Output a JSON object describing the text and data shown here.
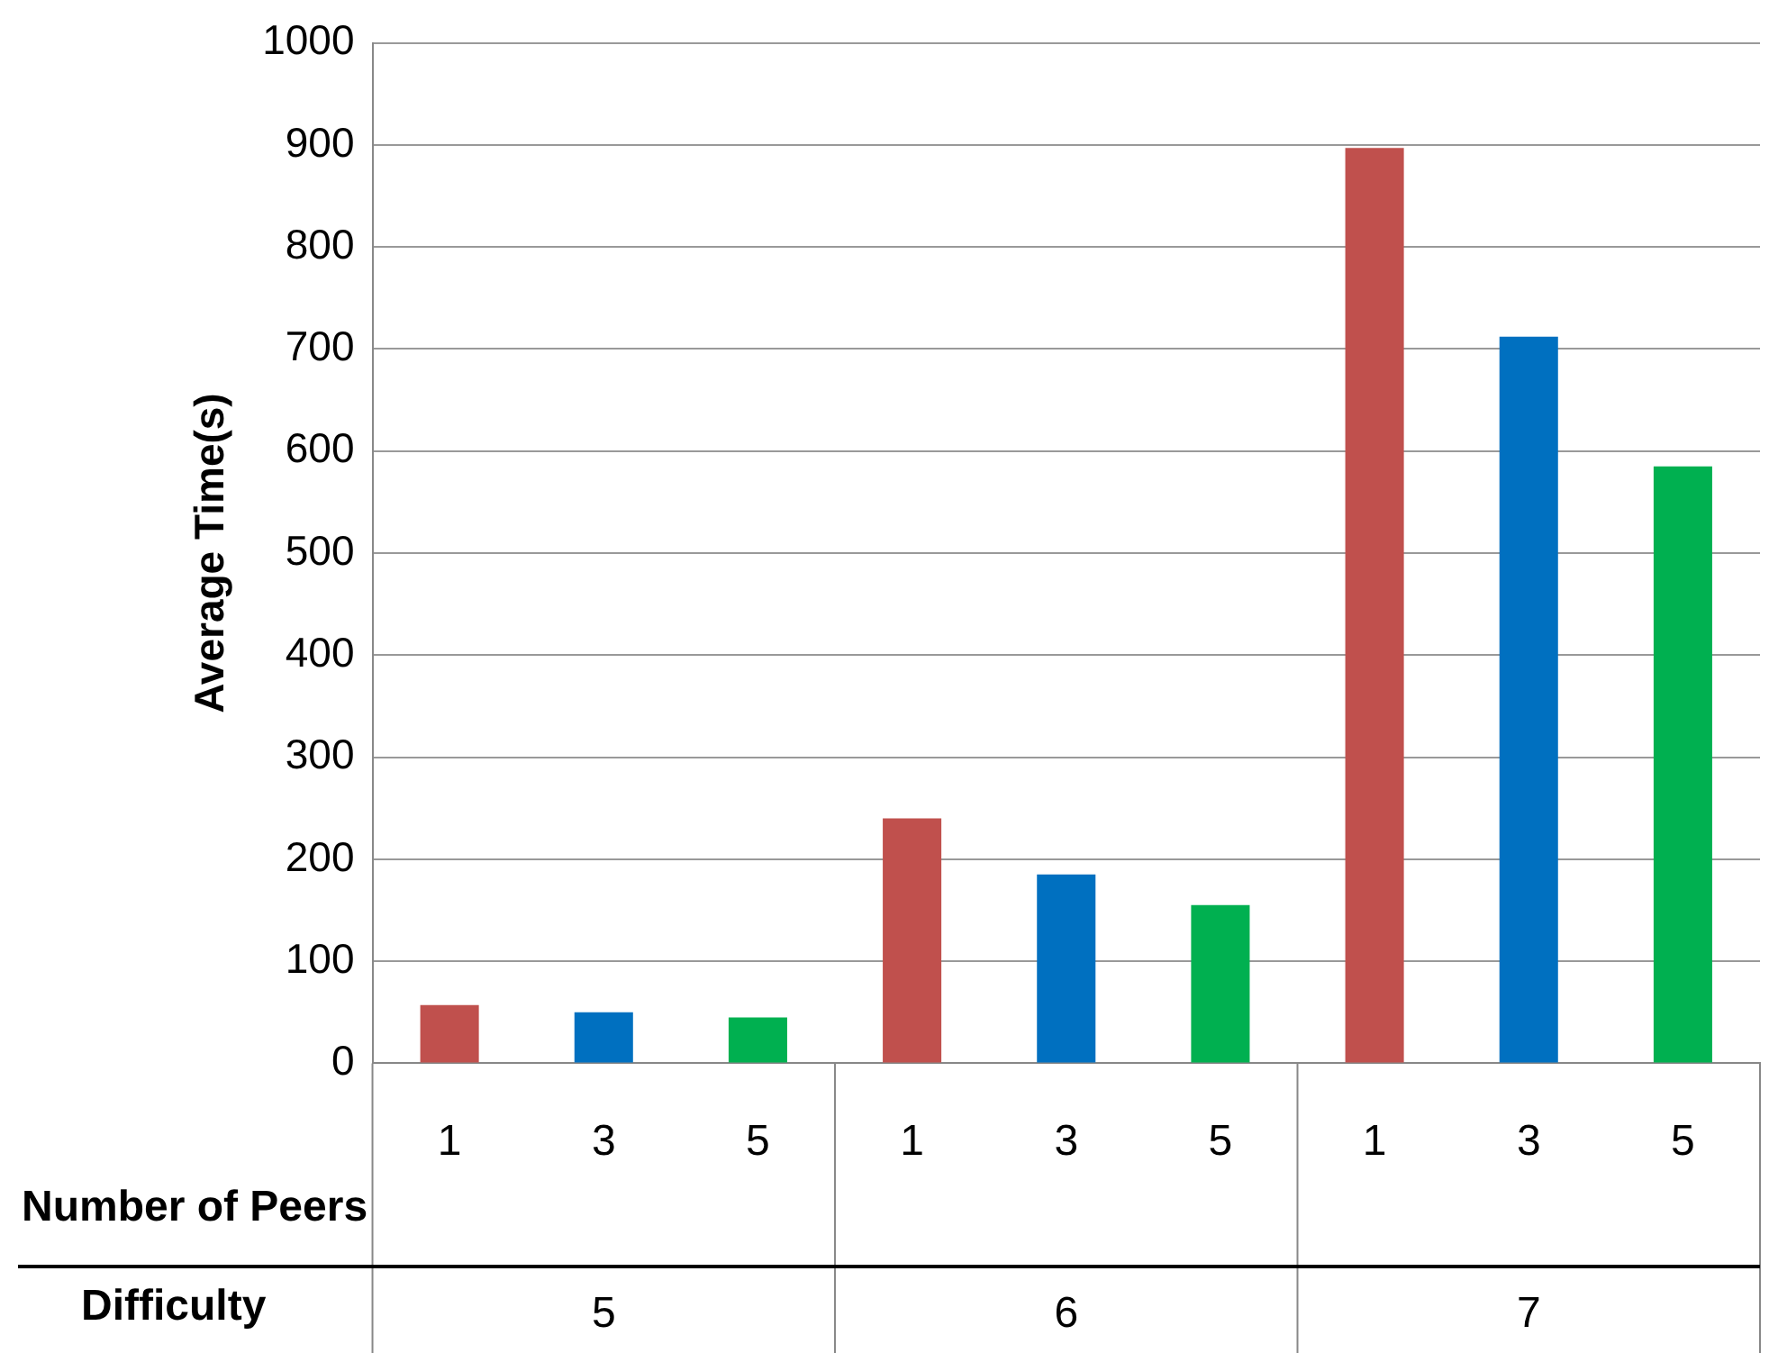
{
  "chart_data": {
    "type": "bar",
    "ylabel": "Average Time(s)",
    "categories": [
      "1",
      "3",
      "5",
      "1",
      "3",
      "5",
      "1",
      "3",
      "5"
    ],
    "values": [
      57,
      50,
      45,
      240,
      185,
      155,
      897,
      712,
      585
    ],
    "colors": [
      "#c0504d",
      "#0070c0",
      "#00b050",
      "#c0504d",
      "#0070c0",
      "#00b050",
      "#c0504d",
      "#0070c0",
      "#00b050"
    ],
    "ylim": [
      0,
      1000
    ],
    "yticks": [
      0,
      100,
      200,
      300,
      400,
      500,
      600,
      700,
      800,
      900,
      1000
    ],
    "grid": "y",
    "annotations": [
      "Number of Peers",
      "Difficulty",
      "5",
      "6",
      "7"
    ]
  }
}
